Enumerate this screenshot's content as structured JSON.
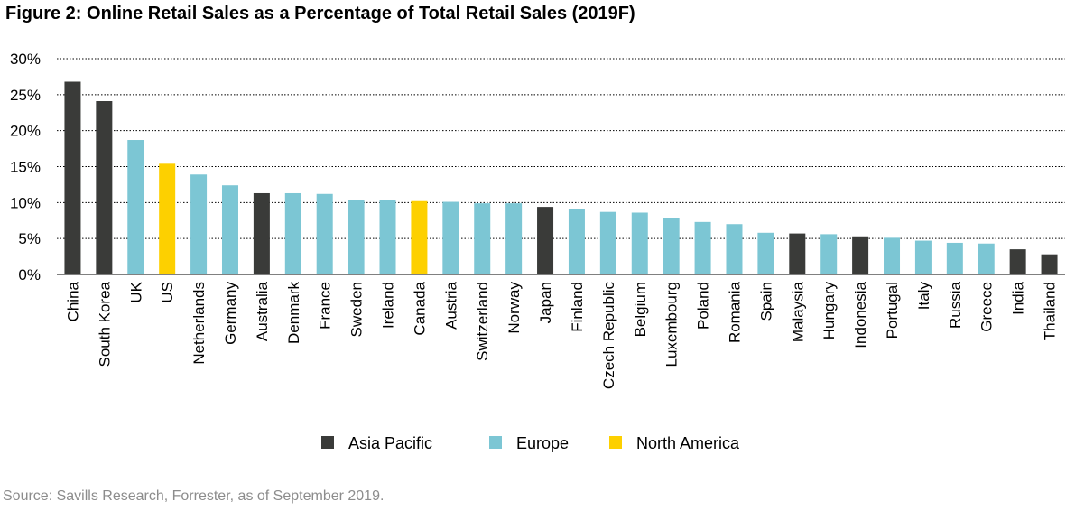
{
  "title": "Figure 2: Online Retail Sales as a Percentage of Total Retail Sales (2019F)",
  "source": "Source: Savills Research, Forrester, as of September 2019.",
  "colors": {
    "Asia Pacific": "#3a3b39",
    "Europe": "#7cc6d4",
    "North America": "#fdd000"
  },
  "chart_data": {
    "type": "bar",
    "title": "Figure 2: Online Retail Sales as a Percentage of Total Retail Sales (2019F)",
    "xlabel": "",
    "ylabel": "",
    "ylim": [
      0,
      30
    ],
    "yticks": [
      "0%",
      "5%",
      "10%",
      "15%",
      "20%",
      "25%",
      "30%"
    ],
    "grid": "horizontal dotted",
    "legend": [
      "Asia Pacific",
      "Europe",
      "North America"
    ],
    "legend_position": "bottom",
    "categories": [
      "China",
      "South Korea",
      "UK",
      "US",
      "Netherlands",
      "Germany",
      "Australia",
      "Denmark",
      "France",
      "Sweden",
      "Ireland",
      "Canada",
      "Austria",
      "Switzerland",
      "Norway",
      "Japan",
      "Finland",
      "Czech Republic",
      "Belgium",
      "Luxembourg",
      "Poland",
      "Romania",
      "Spain",
      "Malaysia",
      "Hungary",
      "Indonesia",
      "Portugal",
      "Italy",
      "Russia",
      "Greece",
      "India",
      "Thailand"
    ],
    "values": [
      26.8,
      24.1,
      18.7,
      15.4,
      13.9,
      12.4,
      11.3,
      11.3,
      11.2,
      10.4,
      10.4,
      10.2,
      10.1,
      9.9,
      9.9,
      9.4,
      9.1,
      8.7,
      8.6,
      7.9,
      7.3,
      7.0,
      5.8,
      5.7,
      5.6,
      5.3,
      5.1,
      4.7,
      4.4,
      4.3,
      3.5,
      2.8
    ],
    "regions": [
      "Asia Pacific",
      "Asia Pacific",
      "Europe",
      "North America",
      "Europe",
      "Europe",
      "Asia Pacific",
      "Europe",
      "Europe",
      "Europe",
      "Europe",
      "North America",
      "Europe",
      "Europe",
      "Europe",
      "Asia Pacific",
      "Europe",
      "Europe",
      "Europe",
      "Europe",
      "Europe",
      "Europe",
      "Europe",
      "Asia Pacific",
      "Europe",
      "Asia Pacific",
      "Europe",
      "Europe",
      "Europe",
      "Europe",
      "Asia Pacific",
      "Asia Pacific"
    ]
  }
}
